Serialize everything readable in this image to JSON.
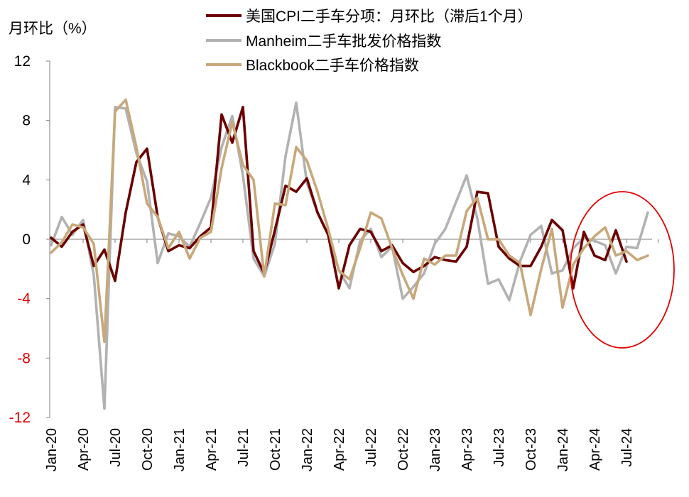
{
  "chart_data": {
    "type": "line",
    "y_unit_label": "月环比（%）",
    "ylim": [
      -12,
      12
    ],
    "y_ticks": [
      12,
      8,
      4,
      0,
      -4,
      -8,
      -12
    ],
    "y_tick_labels": [
      "12",
      "8",
      "4",
      "0",
      "-4",
      "-8",
      "-12"
    ],
    "x_start": "Jan-20",
    "x_tick_labels": [
      "Jan-20",
      "Apr-20",
      "Jul-20",
      "Oct-20",
      "Jan-21",
      "Apr-21",
      "Jul-21",
      "Oct-21",
      "Jan-22",
      "Apr-22",
      "Jul-22",
      "Oct-22",
      "Jan-23",
      "Apr-23",
      "Jul-23",
      "Oct-23",
      "Jan-24",
      "Apr-24",
      "Jul-24"
    ],
    "series": [
      {
        "name": "美国CPI二手车分项：月环比（滞后1个月）",
        "color": "#6b0000",
        "values": [
          0.1,
          -0.5,
          0.5,
          1.0,
          -1.8,
          -0.7,
          -2.8,
          1.8,
          5.2,
          6.1,
          1.5,
          -0.8,
          -0.4,
          -0.6,
          0.2,
          0.8,
          8.4,
          6.5,
          8.9,
          -0.8,
          -2.3,
          0.6,
          3.6,
          3.2,
          4.1,
          1.8,
          0.3,
          -3.3,
          -0.4,
          0.7,
          0.5,
          -0.8,
          -0.4,
          -1.6,
          -2.2,
          -1.8,
          -1.2,
          -1.4,
          -1.5,
          -0.5,
          3.2,
          3.1,
          -0.5,
          -1.3,
          -1.8,
          -1.8,
          -0.5,
          1.3,
          0.6,
          -3.3,
          0.5,
          -1.1,
          -1.4,
          0.6,
          -1.5
        ]
      },
      {
        "name": "Manheim二手车批发价格指数",
        "color": "#b2b2b2",
        "values": [
          -0.4,
          1.5,
          0.3,
          1.3,
          -2.4,
          -11.4,
          8.9,
          8.8,
          5.8,
          3.9,
          -1.6,
          0.4,
          0.2,
          -0.5,
          1.1,
          2.8,
          6.2,
          8.3,
          4.3,
          -1.3,
          -2.5,
          -0.3,
          5.6,
          9.2,
          3.8,
          1.8,
          0.3,
          -2.1,
          -3.3,
          -0.1,
          0.7,
          -1.2,
          -0.5,
          -4.0,
          -3.2,
          -2.3,
          -0.3,
          0.7,
          2.5,
          4.3,
          1.4,
          -3.0,
          -2.7,
          -4.1,
          -1.5,
          0.3,
          0.9,
          -2.3,
          -2.1,
          -0.6,
          0.1,
          -0.1,
          -0.4,
          -2.3,
          -0.5,
          -0.6,
          1.8
        ]
      },
      {
        "name": "Blackbook二手车价格指数",
        "color": "#c8a87a",
        "values": [
          -0.9,
          -0.2,
          1.0,
          0.8,
          -0.3,
          -6.9,
          8.6,
          9.4,
          6.2,
          2.4,
          1.5,
          -0.6,
          0.5,
          -1.3,
          0.1,
          0.5,
          4.8,
          7.9,
          5.0,
          4.0,
          -2.5,
          2.4,
          2.3,
          6.2,
          5.3,
          3.2,
          0.7,
          -2.1,
          -2.7,
          -0.6,
          1.8,
          1.4,
          -0.6,
          -2.4,
          -4.0,
          -1.3,
          -1.7,
          -1.1,
          -1.1,
          1.9,
          2.8,
          0.0,
          0.0,
          -1.1,
          -1.6,
          -5.1,
          -2.0,
          0.7,
          -4.6,
          -1.7,
          -0.6,
          0.2,
          0.8,
          -1.1,
          -0.8,
          -1.4,
          -1.1
        ]
      }
    ],
    "annotation": "red ellipse highlighting early-2024 to Jul-24"
  }
}
